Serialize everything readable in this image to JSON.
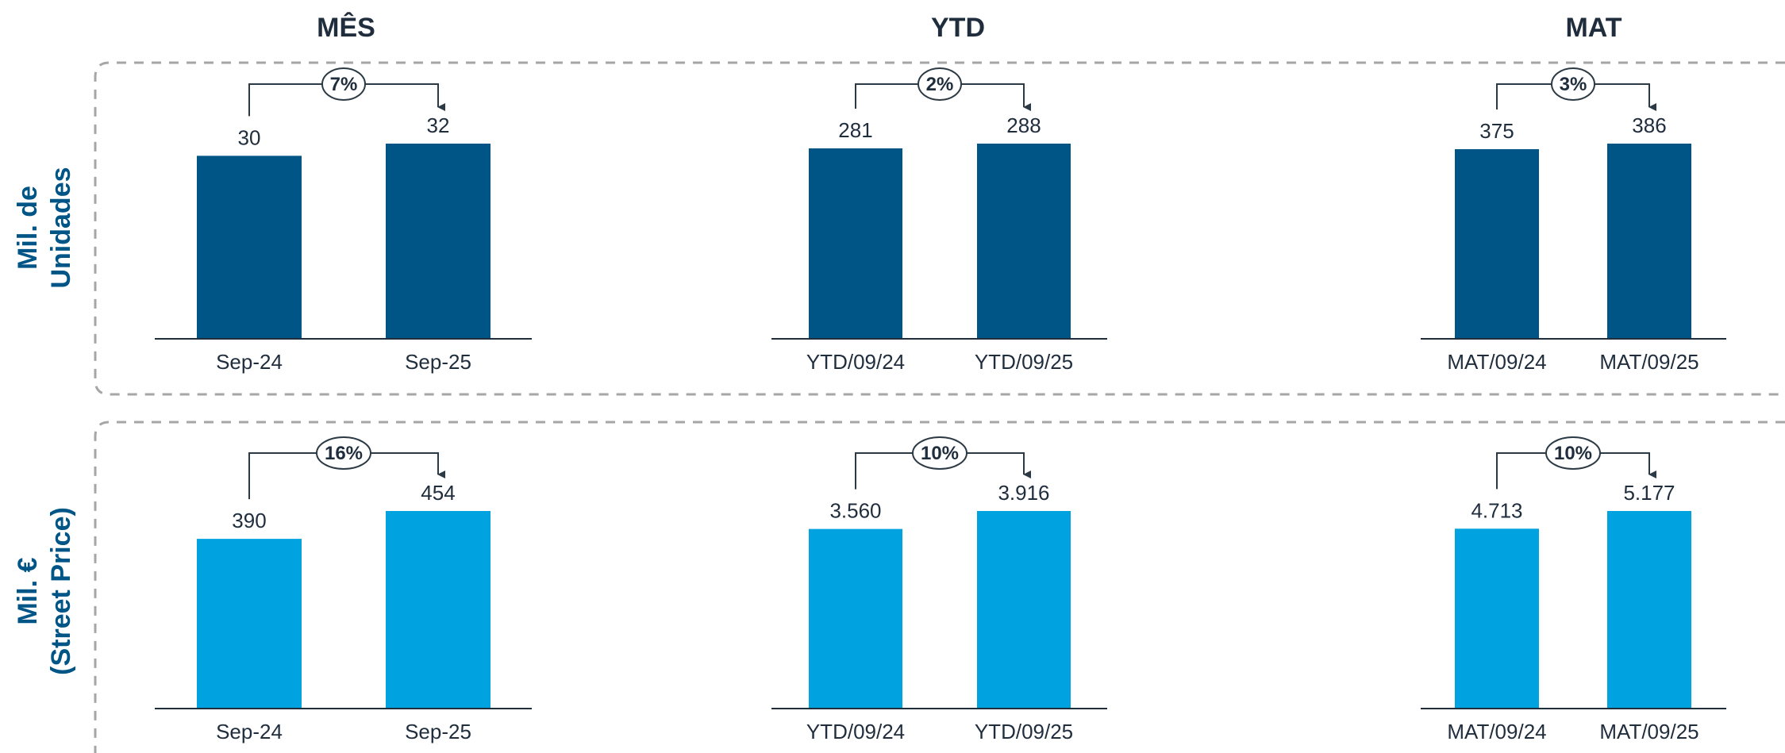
{
  "colors": {
    "units_bar": "#005587",
    "value_bar": "#00a3e0",
    "connector": "#2b3a44",
    "dash_border": "#a6a6a6",
    "axis": "#1f2d3d",
    "row_title": "#005587",
    "text": "#1f2d3d"
  },
  "column_titles": [
    "MÊS",
    "YTD",
    "MAT"
  ],
  "row_titles": [
    [
      "Mil. de",
      "Unidades"
    ],
    [
      "Mil. €",
      "(Street Price)"
    ]
  ],
  "chart_data": [
    {
      "type": "bar",
      "period": "MÊS",
      "measure": "units",
      "categories": [
        "Sep-24",
        "Sep-25"
      ],
      "values": [
        30,
        32
      ],
      "value_labels": [
        "30",
        "32"
      ],
      "change_label": "7%"
    },
    {
      "type": "bar",
      "period": "YTD",
      "measure": "units",
      "categories": [
        "YTD/09/24",
        "YTD/09/25"
      ],
      "values": [
        281,
        288
      ],
      "value_labels": [
        "281",
        "288"
      ],
      "change_label": "2%"
    },
    {
      "type": "bar",
      "period": "MAT",
      "measure": "units",
      "categories": [
        "MAT/09/24",
        "MAT/09/25"
      ],
      "values": [
        375,
        386
      ],
      "value_labels": [
        "375",
        "386"
      ],
      "change_label": "3%"
    },
    {
      "type": "bar",
      "period": "MÊS",
      "measure": "value",
      "categories": [
        "Sep-24",
        "Sep-25"
      ],
      "values": [
        390,
        454
      ],
      "value_labels": [
        "390",
        "454"
      ],
      "change_label": "16%"
    },
    {
      "type": "bar",
      "period": "YTD",
      "measure": "value",
      "categories": [
        "YTD/09/24",
        "YTD/09/25"
      ],
      "values": [
        3560,
        3916
      ],
      "value_labels": [
        "3.560",
        "3.916"
      ],
      "change_label": "10%"
    },
    {
      "type": "bar",
      "period": "MAT",
      "measure": "value",
      "categories": [
        "MAT/09/24",
        "MAT/09/25"
      ],
      "values": [
        4713,
        5177
      ],
      "value_labels": [
        "4.713",
        "5.177"
      ],
      "change_label": "10%"
    }
  ]
}
